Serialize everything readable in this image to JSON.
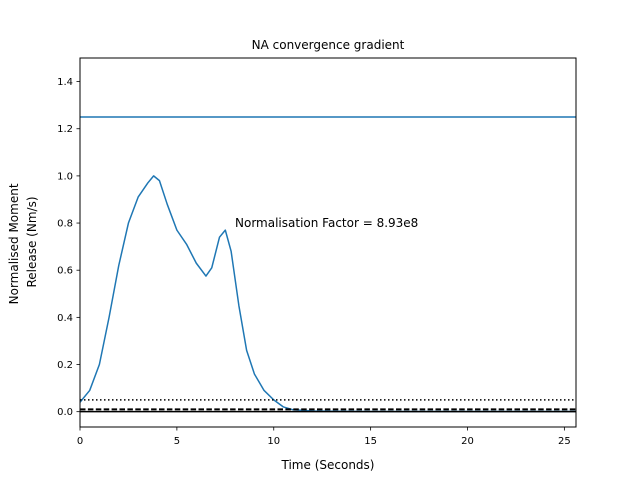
{
  "chart_data": {
    "type": "line",
    "title": "NA convergence gradient",
    "xlabel": "Time (Seconds)",
    "ylabel_lines": [
      "Normalised Moment",
      "Release (Nm/s)"
    ],
    "xlim": [
      0,
      25.6
    ],
    "ylim": [
      -0.065,
      1.5
    ],
    "xticks": [
      0,
      5,
      10,
      15,
      20,
      25
    ],
    "xtick_labels": [
      "0",
      "5",
      "10",
      "15",
      "20",
      "25"
    ],
    "yticks": [
      0.0,
      0.2,
      0.4,
      0.6,
      0.8,
      1.0,
      1.2,
      1.4
    ],
    "ytick_labels": [
      "0.0",
      "0.2",
      "0.4",
      "0.6",
      "0.8",
      "1.0",
      "1.2",
      "1.4"
    ],
    "grid": false,
    "annotation": {
      "text": "Normalisation Factor = 8.93e8",
      "x": 8.0,
      "y": 0.8
    },
    "series": [
      {
        "style": "solid",
        "color": "#1f77b4",
        "x": [
          0,
          25.6
        ],
        "y": [
          1.25,
          1.25
        ]
      },
      {
        "style": "solid",
        "color": "#1f77b4",
        "x": [
          0,
          0.5,
          1.0,
          1.5,
          2.0,
          2.5,
          3.0,
          3.5,
          3.8,
          4.1,
          4.5,
          5.0,
          5.5,
          6.0,
          6.5,
          6.8,
          7.2,
          7.5,
          7.8,
          8.2,
          8.6,
          9.0,
          9.5,
          10.0,
          10.5,
          11.0,
          12.0,
          13.0,
          15.0,
          20.0,
          25.6
        ],
        "y": [
          0.04,
          0.09,
          0.2,
          0.4,
          0.62,
          0.8,
          0.91,
          0.97,
          1.0,
          0.98,
          0.88,
          0.77,
          0.71,
          0.63,
          0.575,
          0.61,
          0.74,
          0.77,
          0.68,
          0.45,
          0.26,
          0.16,
          0.09,
          0.05,
          0.02,
          0.008,
          0.003,
          0.002,
          0.001,
          0.001,
          0.001
        ]
      },
      {
        "style": "dotted",
        "color": "#000000",
        "x": [
          0,
          25.6
        ],
        "y": [
          0.05,
          0.05
        ]
      },
      {
        "style": "dashed",
        "color": "#000000",
        "x": [
          0,
          25.6
        ],
        "y": [
          0.01,
          0.01
        ]
      },
      {
        "style": "solid",
        "color": "#000000",
        "x": [
          0,
          25.6
        ],
        "y": [
          0.0,
          0.0
        ]
      }
    ]
  }
}
